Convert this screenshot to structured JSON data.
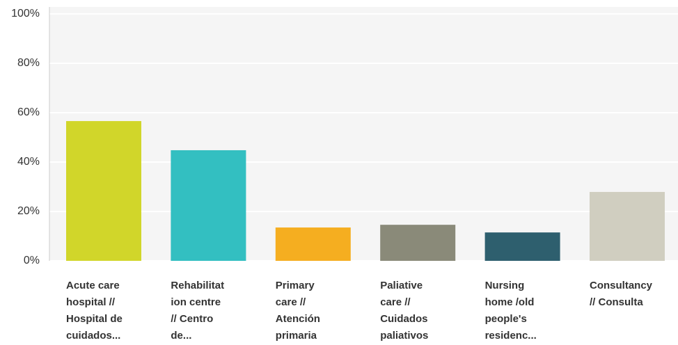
{
  "chart_data": {
    "type": "bar",
    "categories": [
      [
        "Acute care",
        "hospital //",
        "Hospital de",
        "cuidados..."
      ],
      [
        "Rehabilitat",
        "ion centre",
        "// Centro",
        "de..."
      ],
      [
        "Primary",
        "care //",
        "Atención",
        "primaria"
      ],
      [
        "Paliative",
        "care //",
        "Cuidados",
        "paliativos"
      ],
      [
        "Nursing",
        "home /old",
        "people's",
        "residenc..."
      ],
      [
        "Consultancy",
        "// Consulta"
      ]
    ],
    "values": [
      56.6,
      44.8,
      13.5,
      14.6,
      11.5,
      27.9
    ],
    "colors": [
      "#d1d62a",
      "#33bfc1",
      "#f5ae20",
      "#8a8a79",
      "#2e5f6e",
      "#d0cec0"
    ],
    "ylim": [
      0,
      100
    ],
    "yticks": [
      {
        "value": 0,
        "label": "0%"
      },
      {
        "value": 20,
        "label": "20%"
      },
      {
        "value": 40,
        "label": "40%"
      },
      {
        "value": 60,
        "label": "60%"
      },
      {
        "value": 80,
        "label": "80%"
      },
      {
        "value": 100,
        "label": "100%"
      }
    ],
    "grid": true
  }
}
